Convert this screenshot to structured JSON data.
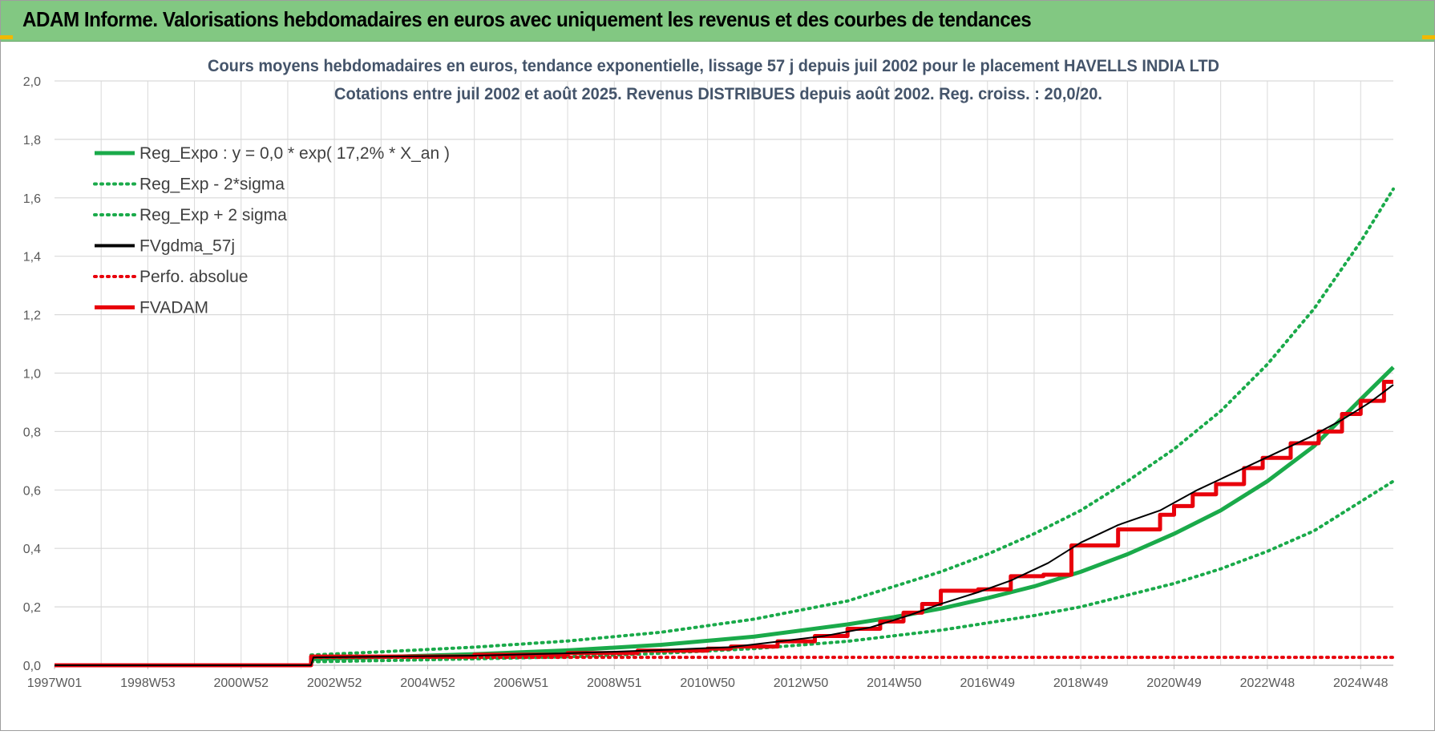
{
  "banner": {
    "title": "ADAM Informe. Valorisations hebdomadaires en euros avec uniquement les revenus et des courbes de tendances"
  },
  "colors": {
    "banner_bg": "#82c882",
    "green": "#1aaa4a",
    "black": "#000000",
    "red": "#e8000b",
    "grid": "#d9d9d9",
    "axis_text": "#595959",
    "title_text": "#44546a"
  },
  "chart_data": {
    "type": "line",
    "title_line1": "Cours moyens hebdomadaires en euros, tendance exponentielle, lissage 57 j depuis juil 2002 pour le placement HAVELLS INDIA LTD",
    "title_line2": "Cotations entre juil 2002 et août 2025. Revenus DISTRIBUES depuis août 2002. Reg. croiss. : 20,0/20.",
    "xlabel": "",
    "ylabel": "",
    "ylim": [
      0,
      2.0
    ],
    "xlim": [
      1997.0,
      2025.7
    ],
    "grid": true,
    "legend_position": "top-left",
    "y_ticks": [
      "0,0",
      "0,2",
      "0,4",
      "0,6",
      "0,8",
      "1,0",
      "1,2",
      "1,4",
      "1,6",
      "1,8",
      "2,0"
    ],
    "x_tick_labels": [
      "1997W01",
      "1998W53",
      "2000W52",
      "2002W52",
      "2004W52",
      "2006W51",
      "2008W51",
      "2010W50",
      "2012W50",
      "2014W50",
      "2016W49",
      "2018W49",
      "2020W49",
      "2022W48",
      "2024W48"
    ],
    "x_tick_years": [
      1997.0,
      1999.0,
      2001.0,
      2003.0,
      2005.0,
      2007.0,
      2009.0,
      2011.0,
      2013.0,
      2015.0,
      2017.0,
      2019.0,
      2021.0,
      2023.0,
      2025.0
    ],
    "series": [
      {
        "name": "Reg_Expo : y = 0,0 * exp( 17,2% *  X_an )",
        "style": "solid-thick",
        "color": "#1aaa4a",
        "x": [
          2002.5,
          2004,
          2006,
          2008,
          2010,
          2012,
          2014,
          2015,
          2016,
          2017,
          2018,
          2019,
          2020,
          2021,
          2022,
          2023,
          2024,
          2025,
          2025.7
        ],
        "y": [
          0.021,
          0.028,
          0.038,
          0.051,
          0.07,
          0.098,
          0.14,
          0.165,
          0.194,
          0.23,
          0.27,
          0.32,
          0.38,
          0.45,
          0.53,
          0.63,
          0.75,
          0.91,
          1.02
        ]
      },
      {
        "name": "Reg_Exp - 2*sigma",
        "style": "dotted",
        "color": "#1aaa4a",
        "x": [
          2002.5,
          2004,
          2006,
          2008,
          2010,
          2012,
          2014,
          2016,
          2018,
          2019,
          2020,
          2021,
          2022,
          2023,
          2024,
          2025,
          2025.7
        ],
        "y": [
          0.012,
          0.016,
          0.022,
          0.029,
          0.041,
          0.057,
          0.082,
          0.12,
          0.17,
          0.2,
          0.24,
          0.28,
          0.33,
          0.39,
          0.46,
          0.56,
          0.63
        ]
      },
      {
        "name": "Reg_Exp + 2 sigma",
        "style": "dotted",
        "color": "#1aaa4a",
        "x": [
          2002.5,
          2004,
          2006,
          2008,
          2010,
          2012,
          2014,
          2016,
          2017,
          2018,
          2019,
          2020,
          2021,
          2022,
          2023,
          2024,
          2025,
          2025.7
        ],
        "y": [
          0.035,
          0.046,
          0.062,
          0.083,
          0.113,
          0.158,
          0.22,
          0.32,
          0.38,
          0.45,
          0.53,
          0.63,
          0.74,
          0.87,
          1.03,
          1.22,
          1.45,
          1.63
        ]
      },
      {
        "name": "FVgdma_57j",
        "style": "solid",
        "color": "#000000",
        "x": [
          1997.0,
          2002.5,
          2002.55,
          2006,
          2008,
          2010,
          2011.5,
          2012.5,
          2013.5,
          2014.5,
          2015.3,
          2016,
          2016.8,
          2017.5,
          2018.3,
          2019,
          2019.8,
          2020.7,
          2021.5,
          2022.3,
          2023.1,
          2023.9,
          2024.6,
          2025.2,
          2025.7
        ],
        "y": [
          0.0,
          0.0,
          0.027,
          0.033,
          0.041,
          0.052,
          0.062,
          0.081,
          0.1,
          0.13,
          0.17,
          0.21,
          0.25,
          0.29,
          0.35,
          0.42,
          0.48,
          0.53,
          0.6,
          0.66,
          0.72,
          0.78,
          0.84,
          0.9,
          0.96
        ]
      },
      {
        "name": "Perfo. absolue",
        "style": "dotted",
        "color": "#e8000b",
        "x": [
          2002.55,
          2025.7
        ],
        "y": [
          0.027,
          0.027
        ]
      },
      {
        "name": "FVADAM",
        "style": "step-thick",
        "color": "#e8000b",
        "x": [
          1997.0,
          2002.5,
          2006.0,
          2008.0,
          2009.5,
          2011.0,
          2011.5,
          2012.5,
          2013.3,
          2014.0,
          2014.7,
          2015.2,
          2015.6,
          2016.0,
          2016.8,
          2017.5,
          2018.2,
          2018.8,
          2019.3,
          2019.8,
          2020.7,
          2021.0,
          2021.4,
          2021.9,
          2022.5,
          2022.9,
          2023.5,
          2024.1,
          2024.6,
          2025.0,
          2025.5
        ],
        "y": [
          0.0,
          0.03,
          0.036,
          0.042,
          0.05,
          0.057,
          0.064,
          0.082,
          0.1,
          0.125,
          0.15,
          0.18,
          0.21,
          0.255,
          0.26,
          0.305,
          0.31,
          0.41,
          0.41,
          0.465,
          0.515,
          0.545,
          0.585,
          0.62,
          0.675,
          0.71,
          0.76,
          0.8,
          0.86,
          0.905,
          0.97
        ]
      }
    ]
  }
}
